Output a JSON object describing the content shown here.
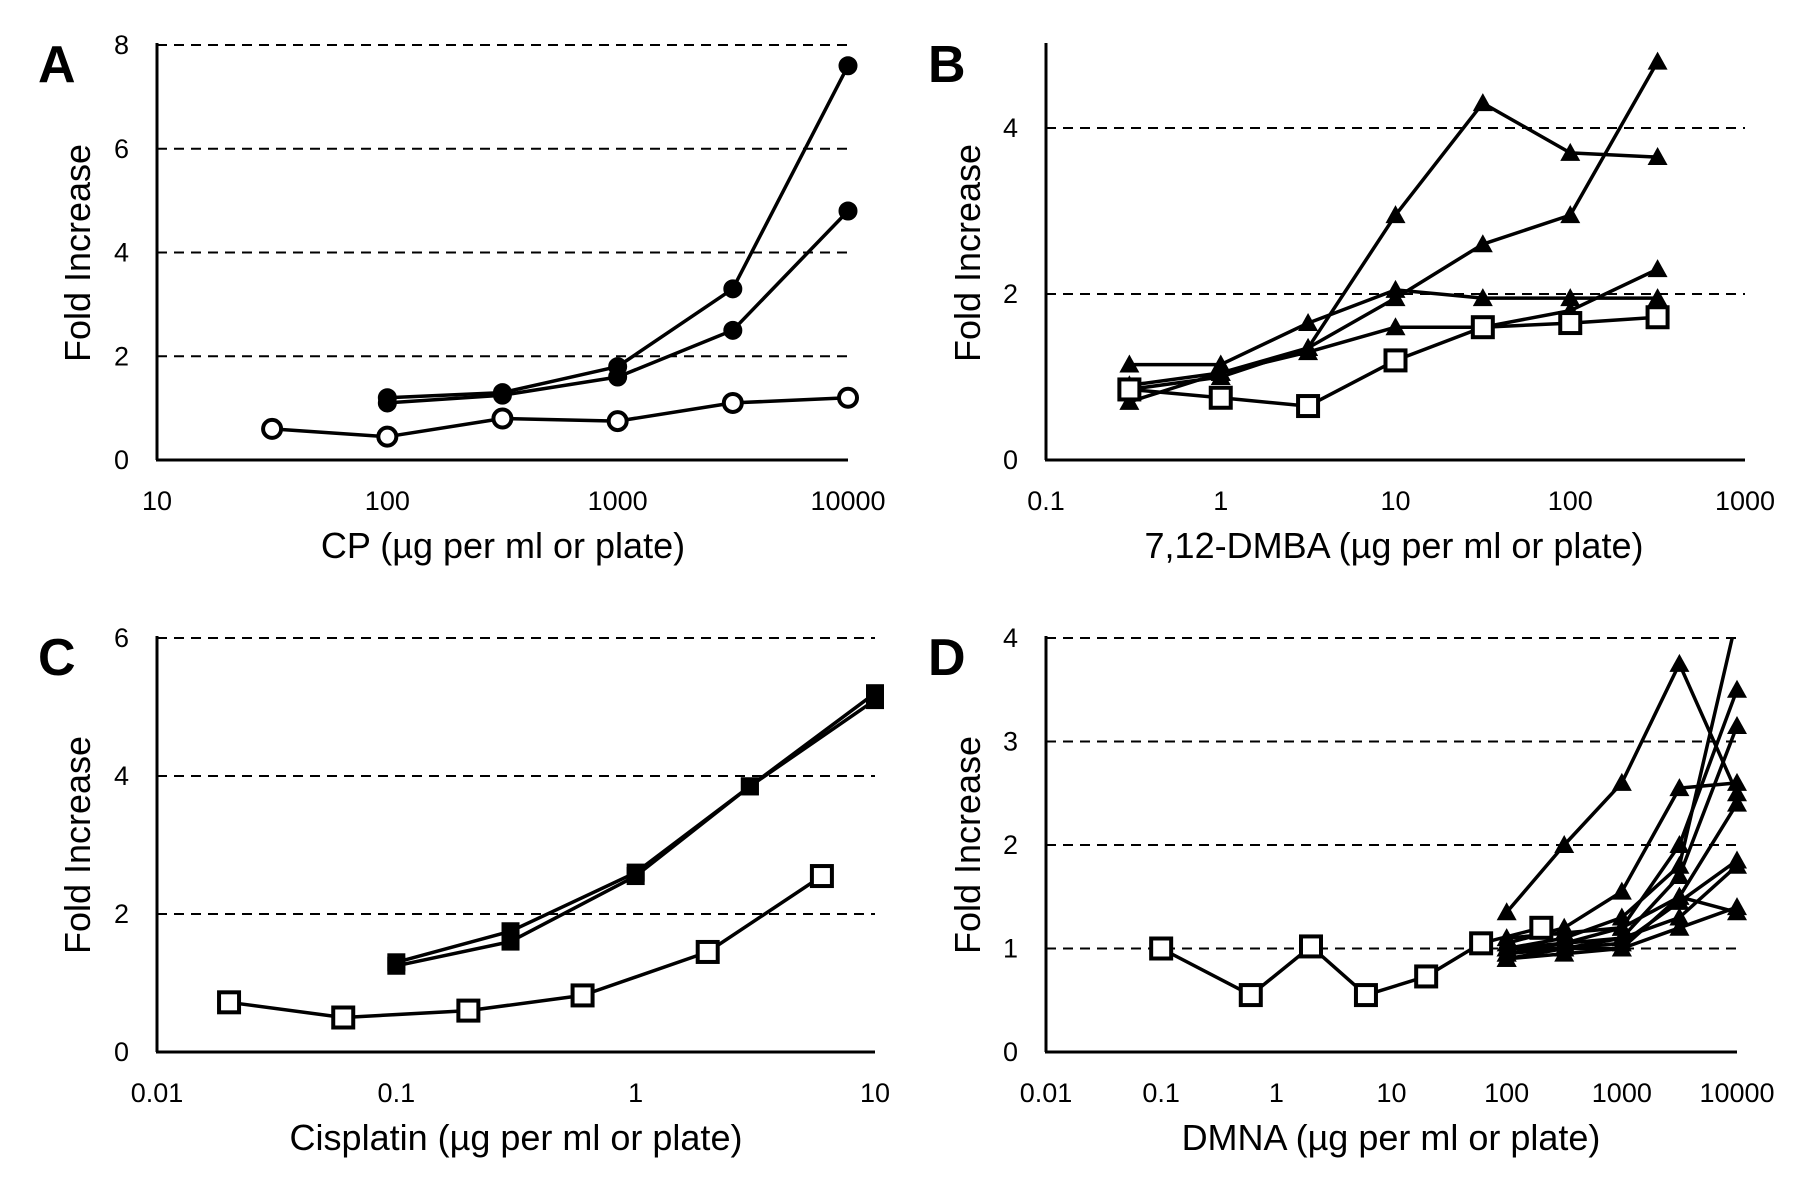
{
  "chart_data": [
    {
      "panel": "A",
      "type": "line",
      "xscale": "log",
      "xlabel": "CP (µg per ml or plate)",
      "ylabel": "Fold Increase",
      "xlim": [
        10,
        10000
      ],
      "ylim": [
        0,
        8
      ],
      "xticks": [
        10,
        100,
        1000,
        10000
      ],
      "xtick_labels": [
        "10",
        "100",
        "1000",
        "10000"
      ],
      "yticks": [
        0,
        2,
        4,
        6,
        8
      ],
      "ytick_labels": [
        "0",
        "2",
        "4",
        "6",
        "8"
      ],
      "grid_y": [
        2,
        4,
        6,
        8
      ],
      "series": [
        {
          "marker": "filled-circle",
          "x": [
            100,
            316,
            1000,
            3162,
            10000
          ],
          "y": [
            1.2,
            1.3,
            1.8,
            3.3,
            7.6
          ]
        },
        {
          "marker": "filled-circle",
          "x": [
            100,
            316,
            1000,
            3162,
            10000
          ],
          "y": [
            1.1,
            1.25,
            1.6,
            2.5,
            4.8
          ]
        },
        {
          "marker": "open-circle",
          "x": [
            31.6,
            100,
            316,
            1000,
            3162,
            10000
          ],
          "y": [
            0.6,
            0.45,
            0.8,
            0.75,
            1.1,
            1.2
          ]
        }
      ]
    },
    {
      "panel": "B",
      "type": "line",
      "xscale": "log",
      "xlabel": "7,12-DMBA (µg per ml or plate)",
      "ylabel": "Fold Increase",
      "xlim": [
        0.1,
        1000
      ],
      "ylim": [
        0,
        5
      ],
      "xticks": [
        0.1,
        1,
        10,
        100,
        1000
      ],
      "xtick_labels": [
        "0.1",
        "1",
        "10",
        "100",
        "1000"
      ],
      "yticks": [
        0,
        2,
        4
      ],
      "ytick_labels": [
        "0",
        "2",
        "4"
      ],
      "grid_y": [
        2,
        4
      ],
      "series": [
        {
          "marker": "filled-triangle",
          "x": [
            0.3,
            1,
            3.16,
            10,
            31.6,
            100,
            316
          ],
          "y": [
            0.7,
            1.05,
            1.35,
            2.95,
            4.3,
            3.7,
            3.65
          ]
        },
        {
          "marker": "filled-triangle",
          "x": [
            0.3,
            1,
            3.16,
            10,
            31.6,
            100,
            316
          ],
          "y": [
            0.85,
            1.0,
            1.35,
            1.95,
            2.6,
            2.95,
            4.8
          ]
        },
        {
          "marker": "filled-triangle",
          "x": [
            0.3,
            1,
            3.16,
            10,
            31.6,
            100,
            316
          ],
          "y": [
            1.15,
            1.15,
            1.65,
            2.05,
            1.95,
            1.95,
            1.95
          ]
        },
        {
          "marker": "filled-triangle",
          "x": [
            0.3,
            1,
            3.16,
            10,
            31.6,
            100,
            316
          ],
          "y": [
            0.9,
            1.05,
            1.3,
            1.6,
            1.6,
            1.8,
            2.3
          ]
        },
        {
          "marker": "open-square",
          "x": [
            0.3,
            1,
            3.16,
            10,
            31.6,
            100,
            316
          ],
          "y": [
            0.85,
            0.75,
            0.65,
            1.2,
            1.6,
            1.65,
            1.72
          ]
        }
      ]
    },
    {
      "panel": "C",
      "type": "line",
      "xscale": "log",
      "xlabel": "Cisplatin (µg per ml or plate)",
      "ylabel": "Fold Increase",
      "xlim": [
        0.01,
        10
      ],
      "ylim": [
        0,
        6
      ],
      "xticks": [
        0.01,
        0.1,
        1,
        10
      ],
      "xtick_labels": [
        "0.01",
        "0.1",
        "1",
        "10"
      ],
      "yticks": [
        0,
        2,
        4,
        6
      ],
      "ytick_labels": [
        "0",
        "2",
        "4",
        "6"
      ],
      "grid_y": [
        2,
        4,
        6
      ],
      "series": [
        {
          "marker": "filled-square",
          "x": [
            0.1,
            0.3,
            1,
            3,
            10
          ],
          "y": [
            1.3,
            1.75,
            2.6,
            3.85,
            5.2
          ]
        },
        {
          "marker": "filled-square",
          "x": [
            0.1,
            0.3,
            1,
            3,
            10
          ],
          "y": [
            1.25,
            1.6,
            2.55,
            3.85,
            5.1
          ]
        },
        {
          "marker": "open-square",
          "x": [
            0.02,
            0.06,
            0.2,
            0.6,
            2,
            6
          ],
          "y": [
            0.72,
            0.5,
            0.6,
            0.82,
            1.45,
            2.55
          ]
        }
      ]
    },
    {
      "panel": "D",
      "type": "line",
      "xscale": "log",
      "xlabel": "DMNA (µg per ml or plate)",
      "ylabel": "Fold Increase",
      "xlim": [
        0.01,
        10000
      ],
      "ylim": [
        0,
        4
      ],
      "xticks": [
        0.01,
        0.1,
        1,
        10,
        100,
        1000,
        10000
      ],
      "xtick_labels": [
        "0.01",
        "0.1",
        "1",
        "10",
        "100",
        "1000",
        "10000"
      ],
      "yticks": [
        0,
        1,
        2,
        3,
        4
      ],
      "ytick_labels": [
        "0",
        "1",
        "2",
        "3",
        "4"
      ],
      "grid_y": [
        1,
        2,
        3,
        4
      ],
      "series": [
        {
          "marker": "open-square",
          "x": [
            0.1,
            0.6,
            2,
            6,
            20,
            60,
            200
          ],
          "y": [
            1.0,
            0.55,
            1.02,
            0.55,
            0.73,
            1.05,
            1.2
          ]
        },
        {
          "marker": "filled-triangle",
          "x": [
            100,
            316,
            1000,
            3162,
            10000
          ],
          "y": [
            1.35,
            2.0,
            2.6,
            3.75,
            2.5
          ]
        },
        {
          "marker": "filled-triangle",
          "x": [
            100,
            316,
            1000,
            3162,
            10000
          ],
          "y": [
            1.05,
            1.2,
            1.55,
            2.55,
            2.6
          ]
        },
        {
          "marker": "filled-triangle",
          "x": [
            100,
            316,
            1000,
            3162,
            10000
          ],
          "y": [
            1.0,
            1.1,
            1.3,
            1.8,
            4.2
          ]
        },
        {
          "marker": "filled-triangle",
          "x": [
            100,
            316,
            1000,
            3162,
            10000
          ],
          "y": [
            0.95,
            1.05,
            1.2,
            2.0,
            3.5
          ]
        },
        {
          "marker": "filled-triangle",
          "x": [
            100,
            316,
            1000,
            3162,
            10000
          ],
          "y": [
            0.9,
            1.0,
            1.1,
            1.7,
            3.15
          ]
        },
        {
          "marker": "filled-triangle",
          "x": [
            100,
            316,
            1000,
            3162,
            10000
          ],
          "y": [
            1.1,
            1.15,
            1.2,
            1.5,
            2.4
          ]
        },
        {
          "marker": "filled-triangle",
          "x": [
            100,
            316,
            1000,
            3162,
            10000
          ],
          "y": [
            0.95,
            1.0,
            1.05,
            1.45,
            1.85
          ]
        },
        {
          "marker": "filled-triangle",
          "x": [
            100,
            316,
            1000,
            3162,
            10000
          ],
          "y": [
            0.9,
            0.95,
            1.0,
            1.2,
            1.4
          ]
        },
        {
          "marker": "filled-triangle",
          "x": [
            100,
            316,
            1000,
            3162,
            10000
          ],
          "y": [
            1.0,
            1.05,
            1.1,
            1.3,
            1.8
          ]
        },
        {
          "marker": "filled-triangle",
          "x": [
            100,
            316,
            1000,
            3162,
            10000
          ],
          "y": [
            1.0,
            1.0,
            1.0,
            1.5,
            1.35
          ]
        }
      ]
    }
  ]
}
